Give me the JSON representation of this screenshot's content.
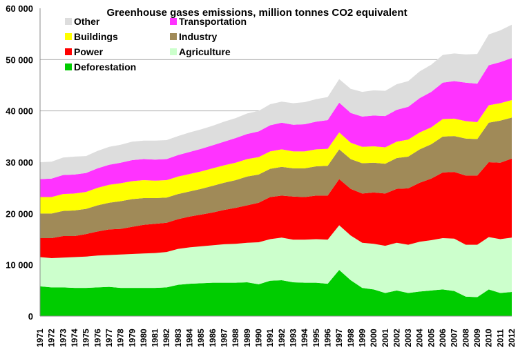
{
  "chart_data": {
    "type": "area",
    "stacked": true,
    "title": "Greenhouse gases emissions, million tonnes CO2 equivalent",
    "xlabel": "",
    "ylabel": "",
    "ylim": [
      0,
      60000
    ],
    "y_ticks": [
      0,
      10000,
      20000,
      30000,
      40000,
      50000,
      60000
    ],
    "y_tick_labels": [
      "0",
      "10 000",
      "20 000",
      "30 000",
      "40 000",
      "50 000",
      "60 000"
    ],
    "gridlines": [
      40000,
      50000
    ],
    "legend_position": "top-left",
    "x": [
      "1971",
      "1972",
      "1973",
      "1974",
      "1975",
      "1976",
      "1977",
      "1978",
      "1979",
      "1980",
      "1981",
      "1982",
      "1983",
      "1984",
      "1985",
      "1986",
      "1987",
      "1988",
      "1989",
      "1990",
      "1991",
      "1992",
      "1993",
      "1994",
      "1995",
      "1996",
      "1997",
      "1998",
      "1999",
      "2000",
      "2001",
      "2002",
      "2003",
      "2004",
      "2005",
      "2006",
      "2007",
      "2008",
      "2009",
      "2010",
      "2011",
      "2012"
    ],
    "series": [
      {
        "name": "Deforestation",
        "color": "#00cc00",
        "values": [
          5800,
          5600,
          5600,
          5500,
          5500,
          5600,
          5700,
          5500,
          5500,
          5500,
          5500,
          5600,
          6100,
          6300,
          6400,
          6500,
          6500,
          6500,
          6600,
          6200,
          6900,
          7000,
          6600,
          6500,
          6500,
          6300,
          9000,
          7000,
          5500,
          5200,
          4500,
          5000,
          4500,
          4800,
          5000,
          5200,
          4900,
          3800,
          3700,
          5200,
          4500,
          4700
        ]
      },
      {
        "name": "Agriculture",
        "color": "#ccffcc",
        "values": [
          5700,
          5700,
          5800,
          6000,
          6100,
          6200,
          6200,
          6500,
          6600,
          6700,
          6800,
          6900,
          7000,
          7100,
          7200,
          7300,
          7500,
          7600,
          7700,
          8200,
          8100,
          8300,
          8300,
          8400,
          8500,
          8600,
          8700,
          8700,
          8800,
          8900,
          9200,
          9300,
          9400,
          9700,
          9800,
          10000,
          10200,
          10100,
          10200,
          10200,
          10500,
          10600
        ]
      },
      {
        "name": "Power",
        "color": "#ff0000",
        "values": [
          3700,
          3900,
          4200,
          4100,
          4400,
          4700,
          5000,
          5000,
          5300,
          5600,
          5700,
          5700,
          5800,
          6000,
          6200,
          6400,
          6700,
          7000,
          7300,
          7700,
          8200,
          8200,
          8400,
          8300,
          8500,
          8600,
          9000,
          9100,
          9600,
          10000,
          10200,
          10500,
          11000,
          11500,
          12000,
          12800,
          13000,
          13500,
          13500,
          14600,
          14900,
          15400
        ]
      },
      {
        "name": "Industry",
        "color": "#a08a58",
        "values": [
          4800,
          4800,
          4900,
          5000,
          4900,
          5100,
          5200,
          5400,
          5400,
          5200,
          5000,
          4900,
          4900,
          4900,
          5000,
          5200,
          5300,
          5400,
          5600,
          5500,
          5500,
          5600,
          5500,
          5600,
          5700,
          5800,
          5800,
          5800,
          5900,
          5800,
          5800,
          6000,
          6200,
          6500,
          6700,
          7000,
          7000,
          7200,
          7100,
          7700,
          8200,
          8000
        ]
      },
      {
        "name": "Buildings",
        "color": "#ffff00",
        "values": [
          3200,
          3200,
          3300,
          3300,
          3300,
          3400,
          3500,
          3500,
          3500,
          3500,
          3400,
          3400,
          3400,
          3400,
          3400,
          3400,
          3400,
          3400,
          3400,
          3400,
          3400,
          3400,
          3300,
          3300,
          3300,
          3300,
          3300,
          3200,
          3200,
          3200,
          3200,
          3200,
          3300,
          3300,
          3300,
          3400,
          3400,
          3400,
          3300,
          3400,
          3400,
          3400
        ]
      },
      {
        "name": "Transportation",
        "color": "#ff33ff",
        "values": [
          3500,
          3600,
          3700,
          3700,
          3700,
          3800,
          3900,
          4000,
          4100,
          4100,
          4100,
          4100,
          4200,
          4300,
          4400,
          4500,
          4600,
          4800,
          4900,
          5000,
          5100,
          5200,
          5200,
          5300,
          5400,
          5600,
          5800,
          5800,
          5900,
          6000,
          6100,
          6200,
          6400,
          6700,
          6900,
          7100,
          7300,
          7500,
          7500,
          7800,
          8000,
          8200
        ]
      },
      {
        "name": "Other",
        "color": "#dddddd",
        "values": [
          3300,
          3300,
          3400,
          3500,
          3300,
          3400,
          3500,
          3500,
          3600,
          3600,
          3700,
          3700,
          3700,
          3800,
          3800,
          3800,
          3900,
          3900,
          4000,
          4000,
          4100,
          4100,
          4200,
          4300,
          4400,
          4500,
          4600,
          4700,
          4800,
          4900,
          4900,
          5000,
          5000,
          5200,
          5300,
          5400,
          5400,
          5500,
          5800,
          6000,
          6200,
          6500
        ]
      }
    ],
    "legend": [
      {
        "name": "Other",
        "color": "#dddddd"
      },
      {
        "name": "Transportation",
        "color": "#ff33ff"
      },
      {
        "name": "Buildings",
        "color": "#ffff00"
      },
      {
        "name": "Industry",
        "color": "#a08a58"
      },
      {
        "name": "Power",
        "color": "#ff0000"
      },
      {
        "name": "Agriculture",
        "color": "#ccffcc"
      },
      {
        "name": "Deforestation",
        "color": "#00cc00"
      }
    ]
  }
}
